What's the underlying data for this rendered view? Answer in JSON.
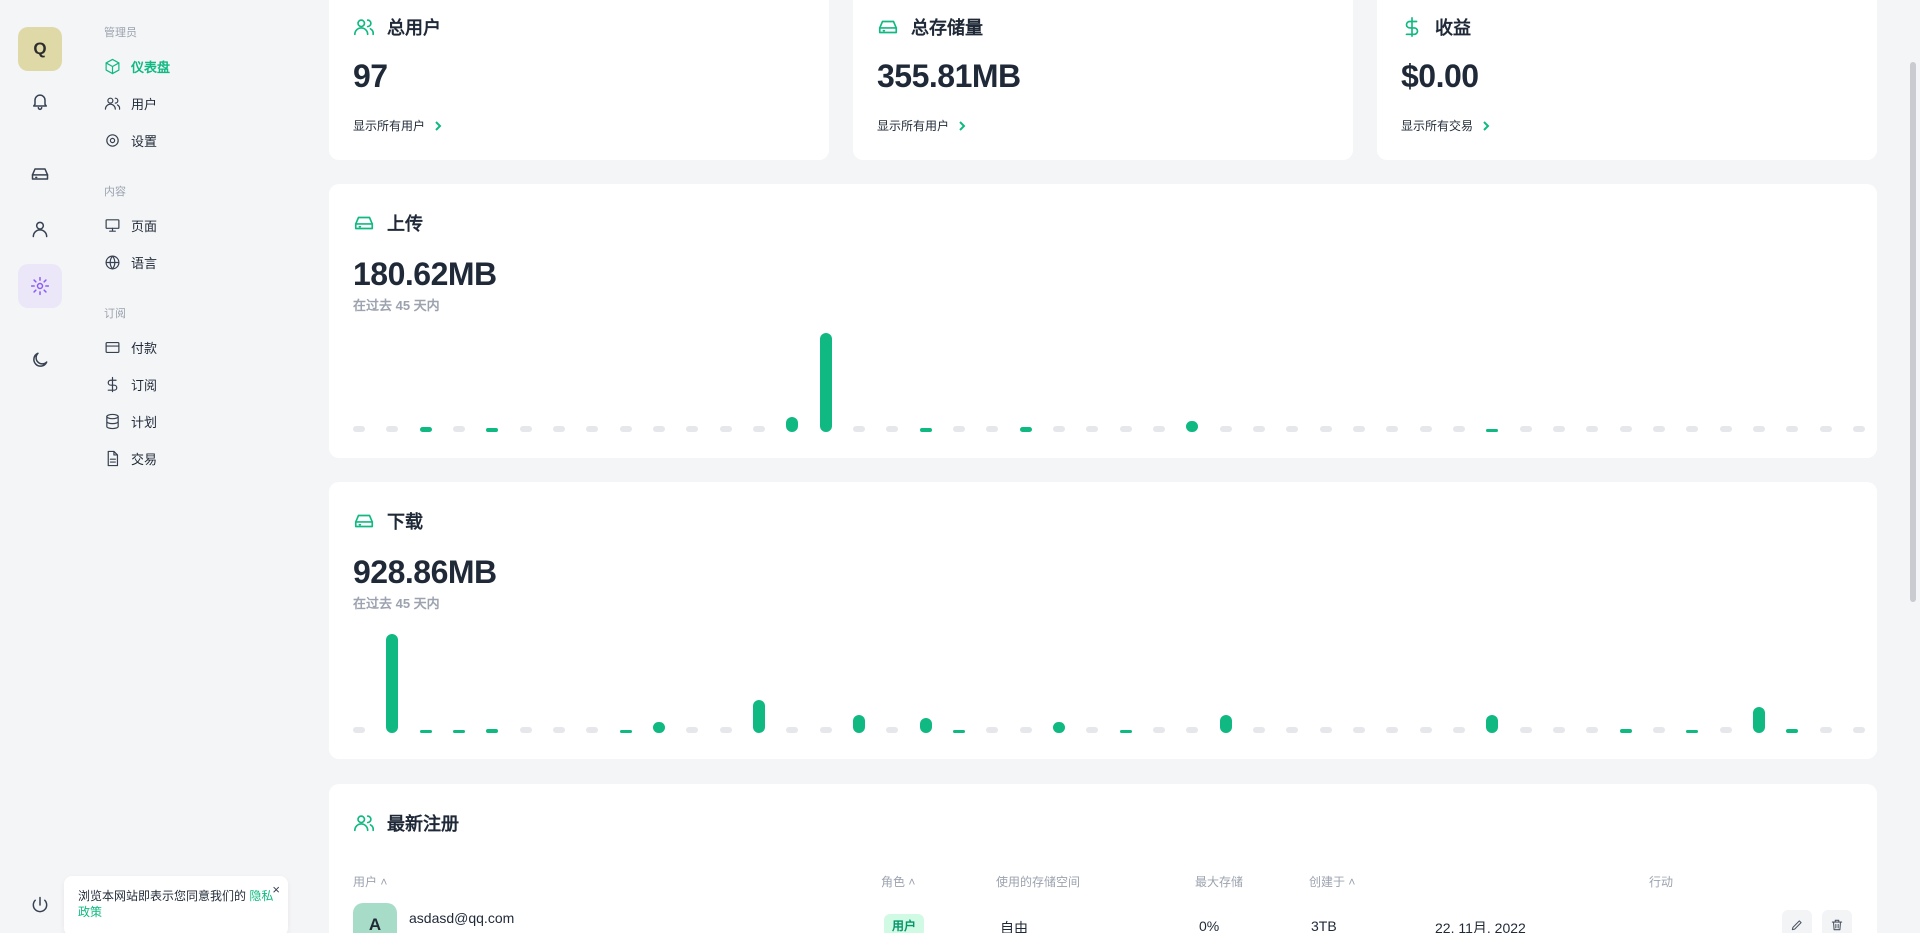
{
  "user": {
    "initial": "Q"
  },
  "nav": {
    "admin_section": "管理员",
    "dashboard": "仪表盘",
    "users": "用户",
    "settings": "设置",
    "content_section": "内容",
    "pages": "页面",
    "languages": "语言",
    "subscription_section": "订阅",
    "payments": "付款",
    "subscriptions": "订阅",
    "plans": "计划",
    "transactions": "交易"
  },
  "stats": {
    "users": {
      "title": "总用户",
      "value": "97",
      "link": "显示所有用户"
    },
    "storage": {
      "title": "总存储量",
      "value": "355.81MB",
      "link": "显示所有用户"
    },
    "revenue": {
      "title": "收益",
      "value": "$0.00",
      "link": "显示所有交易"
    }
  },
  "upload": {
    "title": "上传",
    "value": "180.62MB",
    "subtitle": "在过去 45 天内"
  },
  "download": {
    "title": "下载",
    "value": "928.86MB",
    "subtitle": "在过去 45 天内"
  },
  "colors": {
    "accent": "#10b981",
    "empty_bar": "#e5e7eb",
    "active_rail": "#8b5cf6"
  },
  "chart_data": [
    {
      "type": "bar",
      "title": "上传",
      "series_values": [
        0,
        0,
        1.5,
        0,
        1,
        0,
        0,
        0,
        0,
        0,
        0,
        0,
        0,
        4,
        27,
        0,
        0,
        1,
        0,
        0,
        1.5,
        0,
        0,
        0,
        0,
        3,
        0,
        0,
        0,
        0,
        0,
        0,
        0,
        0,
        0.4,
        0,
        0,
        0,
        0,
        0,
        0,
        0,
        0,
        0,
        0,
        0
      ],
      "ylim": [
        0,
        30
      ]
    },
    {
      "type": "bar",
      "title": "下载",
      "series_values": [
        0,
        27,
        0.4,
        0.3,
        1.2,
        0,
        0,
        0,
        0.8,
        3,
        0,
        0,
        9,
        0,
        0,
        5,
        0,
        4,
        0.8,
        0,
        0,
        3,
        0,
        0.6,
        0,
        0,
        5,
        0,
        0,
        0,
        0,
        0,
        0,
        0,
        5,
        0,
        0,
        0,
        1.2,
        0,
        0.3,
        0,
        7,
        1,
        0,
        0
      ],
      "ylim": [
        0,
        30
      ]
    }
  ],
  "latest": {
    "title": "最新注册",
    "headers": {
      "user": "用户",
      "role": "角色",
      "used": "使用的存储空间",
      "max": "最大存储",
      "created": "创建于",
      "action": "行动"
    },
    "row": {
      "initial": "A",
      "email": "asdasd@qq.com",
      "role": "用户",
      "plan": "自由",
      "used": "0%",
      "max": "3TB",
      "created": "22. 11月. 2022"
    }
  },
  "cookie": {
    "text": "浏览本网站即表示您同意我们的 ",
    "link": "隐私政策",
    "close": "×"
  }
}
